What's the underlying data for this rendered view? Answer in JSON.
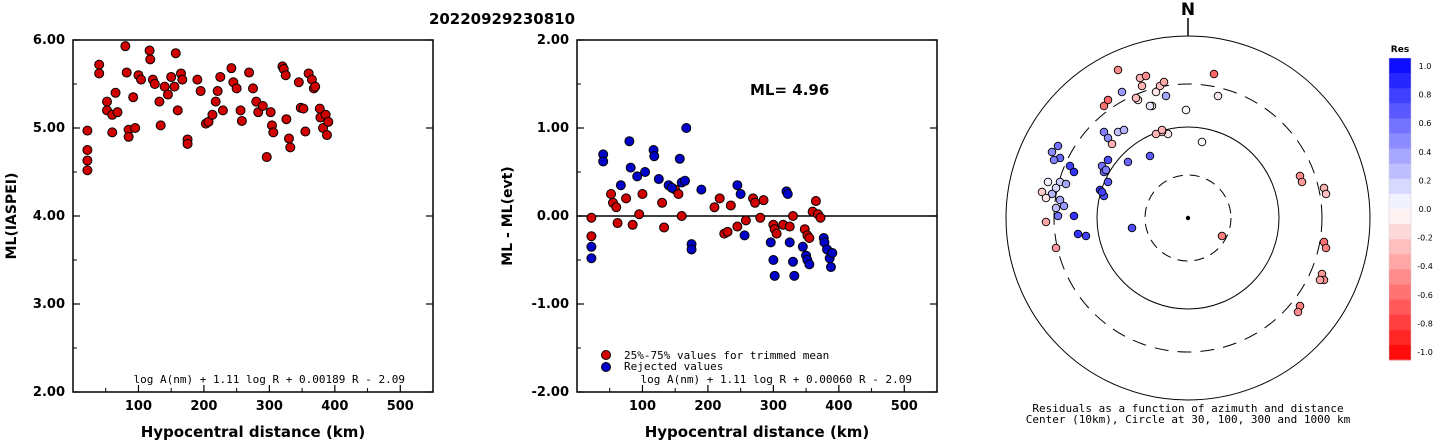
{
  "title": "20220929230810",
  "chart_data": [
    {
      "type": "scatter",
      "xlabel": "Hypocentral distance (km)",
      "ylabel": "ML(IASPEI)",
      "xlim": [
        0,
        550
      ],
      "ylim": [
        2.0,
        6.0
      ],
      "xticks": [
        "100",
        "200",
        "300",
        "400",
        "500"
      ],
      "yticks": [
        "2.00",
        "3.00",
        "4.00",
        "5.00",
        "6.00"
      ],
      "formula": "log A(nm) + 1.11 log R + 0.00189 R - 2.09",
      "points": [
        [
          22,
          4.97
        ],
        [
          22,
          4.75
        ],
        [
          22,
          4.63
        ],
        [
          22,
          4.52
        ],
        [
          40,
          5.72
        ],
        [
          40,
          5.62
        ],
        [
          52,
          5.3
        ],
        [
          52,
          5.2
        ],
        [
          60,
          5.15
        ],
        [
          60,
          4.95
        ],
        [
          65,
          5.4
        ],
        [
          68,
          5.18
        ],
        [
          80,
          5.93
        ],
        [
          82,
          5.63
        ],
        [
          85,
          4.98
        ],
        [
          85,
          4.9
        ],
        [
          92,
          5.35
        ],
        [
          95,
          5.0
        ],
        [
          100,
          5.6
        ],
        [
          104,
          5.55
        ],
        [
          117,
          5.88
        ],
        [
          118,
          5.78
        ],
        [
          122,
          5.55
        ],
        [
          125,
          5.5
        ],
        [
          132,
          5.3
        ],
        [
          134,
          5.03
        ],
        [
          140,
          5.47
        ],
        [
          145,
          5.38
        ],
        [
          150,
          5.58
        ],
        [
          155,
          5.47
        ],
        [
          157,
          5.85
        ],
        [
          160,
          5.2
        ],
        [
          165,
          5.62
        ],
        [
          167,
          5.55
        ],
        [
          175,
          4.87
        ],
        [
          175,
          4.82
        ],
        [
          190,
          5.55
        ],
        [
          195,
          5.42
        ],
        [
          203,
          5.05
        ],
        [
          207,
          5.07
        ],
        [
          213,
          5.15
        ],
        [
          218,
          5.3
        ],
        [
          221,
          5.42
        ],
        [
          225,
          5.58
        ],
        [
          229,
          5.2
        ],
        [
          242,
          5.68
        ],
        [
          245,
          5.52
        ],
        [
          250,
          5.45
        ],
        [
          256,
          5.2
        ],
        [
          258,
          5.08
        ],
        [
          269,
          5.63
        ],
        [
          275,
          5.45
        ],
        [
          280,
          5.3
        ],
        [
          283,
          5.18
        ],
        [
          290,
          5.25
        ],
        [
          296,
          4.67
        ],
        [
          302,
          5.18
        ],
        [
          304,
          5.03
        ],
        [
          306,
          4.95
        ],
        [
          320,
          5.7
        ],
        [
          322,
          5.67
        ],
        [
          325,
          5.6
        ],
        [
          326,
          5.1
        ],
        [
          330,
          4.88
        ],
        [
          332,
          4.78
        ],
        [
          345,
          5.52
        ],
        [
          348,
          5.23
        ],
        [
          352,
          5.22
        ],
        [
          355,
          4.96
        ],
        [
          360,
          5.62
        ],
        [
          365,
          5.55
        ],
        [
          368,
          5.45
        ],
        [
          370,
          5.47
        ],
        [
          377,
          5.22
        ],
        [
          378,
          5.12
        ],
        [
          382,
          5.0
        ],
        [
          386,
          5.15
        ],
        [
          388,
          4.92
        ],
        [
          390,
          5.07
        ]
      ]
    },
    {
      "type": "scatter",
      "xlabel": "Hypocentral distance (km)",
      "ylabel": "ML - ML(evt)",
      "xlim": [
        0,
        550
      ],
      "ylim": [
        -2.0,
        2.0
      ],
      "xticks": [
        "100",
        "200",
        "300",
        "400",
        "500"
      ],
      "yticks": [
        "-2.00",
        "-1.00",
        "0.00",
        "1.00",
        "2.00"
      ],
      "annotation": "ML= 4.96",
      "formula": "log A(nm) + 1.11 log R + 0.00060 R - 2.09",
      "series": [
        {
          "name": "25%-75% values for trimmed mean",
          "color": "#d00000",
          "points": [
            [
              22,
              -0.02
            ],
            [
              22,
              -0.23
            ],
            [
              52,
              0.25
            ],
            [
              55,
              0.15
            ],
            [
              60,
              0.1
            ],
            [
              62,
              -0.08
            ],
            [
              75,
              0.2
            ],
            [
              85,
              -0.1
            ],
            [
              95,
              0.02
            ],
            [
              100,
              0.25
            ],
            [
              130,
              0.15
            ],
            [
              133,
              -0.13
            ],
            [
              150,
              0.3
            ],
            [
              155,
              0.25
            ],
            [
              160,
              0.0
            ],
            [
              210,
              0.1
            ],
            [
              218,
              0.2
            ],
            [
              225,
              -0.2
            ],
            [
              230,
              -0.18
            ],
            [
              235,
              0.12
            ],
            [
              245,
              -0.12
            ],
            [
              258,
              -0.05
            ],
            [
              269,
              0.2
            ],
            [
              272,
              0.15
            ],
            [
              280,
              -0.02
            ],
            [
              285,
              0.18
            ],
            [
              300,
              -0.1
            ],
            [
              302,
              -0.15
            ],
            [
              305,
              -0.2
            ],
            [
              315,
              -0.1
            ],
            [
              325,
              -0.12
            ],
            [
              330,
              0.0
            ],
            [
              348,
              -0.15
            ],
            [
              352,
              -0.22
            ],
            [
              355,
              -0.25
            ],
            [
              360,
              0.05
            ],
            [
              365,
              0.17
            ],
            [
              368,
              0.02
            ],
            [
              372,
              -0.02
            ]
          ]
        },
        {
          "name": "Rejected values",
          "color": "#0000c8",
          "points": [
            [
              22,
              -0.35
            ],
            [
              22,
              -0.48
            ],
            [
              40,
              0.7
            ],
            [
              40,
              0.62
            ],
            [
              67,
              0.35
            ],
            [
              80,
              0.85
            ],
            [
              82,
              0.55
            ],
            [
              92,
              0.45
            ],
            [
              104,
              0.5
            ],
            [
              117,
              0.75
            ],
            [
              118,
              0.68
            ],
            [
              125,
              0.42
            ],
            [
              140,
              0.35
            ],
            [
              145,
              0.32
            ],
            [
              157,
              0.65
            ],
            [
              160,
              0.38
            ],
            [
              165,
              0.4
            ],
            [
              167,
              1.0
            ],
            [
              175,
              -0.32
            ],
            [
              175,
              -0.38
            ],
            [
              190,
              0.3
            ],
            [
              245,
              0.35
            ],
            [
              250,
              0.25
            ],
            [
              256,
              -0.22
            ],
            [
              296,
              -0.3
            ],
            [
              300,
              -0.5
            ],
            [
              302,
              -0.68
            ],
            [
              320,
              0.28
            ],
            [
              322,
              0.25
            ],
            [
              325,
              -0.3
            ],
            [
              330,
              -0.52
            ],
            [
              332,
              -0.68
            ],
            [
              345,
              -0.35
            ],
            [
              350,
              -0.45
            ],
            [
              352,
              -0.5
            ],
            [
              355,
              -0.55
            ],
            [
              377,
              -0.25
            ],
            [
              378,
              -0.3
            ],
            [
              382,
              -0.38
            ],
            [
              386,
              -0.48
            ],
            [
              388,
              -0.58
            ],
            [
              390,
              -0.42
            ]
          ]
        }
      ]
    },
    {
      "type": "polar-scatter",
      "north_label": "N",
      "caption_line1": "Residuals as a function of azimuth and distance",
      "caption_line2": "Center (10km), Circle at 30, 100, 300 and 1000 km",
      "colorbar_title": "Res",
      "colorbar_ticks": [
        "1.0",
        "0.8",
        "0.6",
        "0.4",
        "0.2",
        "0.0",
        "-0.2",
        "-0.4",
        "-0.6",
        "-0.8",
        "-1.0"
      ],
      "stations": [
        {
          "dx": -2,
          "dy": -108,
          "res": 0.0
        },
        {
          "dx": 14,
          "dy": -76,
          "res": 0.0
        },
        {
          "dx": 34,
          "dy": 18,
          "res": -0.5
        },
        {
          "dx": -56,
          "dy": 10,
          "res": 0.7
        },
        {
          "dx": -110,
          "dy": 16,
          "res": 0.8
        },
        {
          "dx": -102,
          "dy": 18,
          "res": 0.75
        },
        {
          "dx": -38,
          "dy": -62,
          "res": 0.65
        },
        {
          "dx": -20,
          "dy": -84,
          "res": -0.1
        },
        {
          "dx": -26,
          "dy": -86,
          "res": -0.25
        },
        {
          "dx": -32,
          "dy": -84,
          "res": -0.3
        },
        {
          "dx": -80,
          "dy": -58,
          "res": 0.7
        },
        {
          "dx": -86,
          "dy": -52,
          "res": 0.55
        },
        {
          "dx": -84,
          "dy": -46,
          "res": 0.6
        },
        {
          "dx": -88,
          "dy": -28,
          "res": 0.8
        },
        {
          "dx": -84,
          "dy": -22,
          "res": 0.7
        },
        {
          "dx": -84,
          "dy": -86,
          "res": 0.5
        },
        {
          "dx": -80,
          "dy": -80,
          "res": 0.45
        },
        {
          "dx": -70,
          "dy": -86,
          "res": 0.25
        },
        {
          "dx": -64,
          "dy": -88,
          "res": 0.3
        },
        {
          "dx": -130,
          "dy": -72,
          "res": 0.55
        },
        {
          "dx": -136,
          "dy": -66,
          "res": 0.45
        },
        {
          "dx": -128,
          "dy": -60,
          "res": 0.6
        },
        {
          "dx": -134,
          "dy": -58,
          "res": 0.5
        },
        {
          "dx": -118,
          "dy": -52,
          "res": 0.75
        },
        {
          "dx": -114,
          "dy": -46,
          "res": 0.8
        },
        {
          "dx": -128,
          "dy": -36,
          "res": 0.2
        },
        {
          "dx": -122,
          "dy": -34,
          "res": 0.35
        },
        {
          "dx": -132,
          "dy": -30,
          "res": 0.15
        },
        {
          "dx": -140,
          "dy": -36,
          "res": 0.05
        },
        {
          "dx": -136,
          "dy": -24,
          "res": 0.3
        },
        {
          "dx": -128,
          "dy": -18,
          "res": 0.35
        },
        {
          "dx": -124,
          "dy": -12,
          "res": 0.4
        },
        {
          "dx": -132,
          "dy": -10,
          "res": 0.25
        },
        {
          "dx": -146,
          "dy": -26,
          "res": -0.2
        },
        {
          "dx": -142,
          "dy": -20,
          "res": -0.1
        },
        {
          "dx": -130,
          "dy": -2,
          "res": 0.55
        },
        {
          "dx": -142,
          "dy": 4,
          "res": -0.35
        },
        {
          "dx": -114,
          "dy": -2,
          "res": 0.8
        },
        {
          "dx": -86,
          "dy": -26,
          "res": 0.75
        },
        {
          "dx": -82,
          "dy": -48,
          "res": 0.5
        },
        {
          "dx": -80,
          "dy": -36,
          "res": 0.65
        },
        {
          "dx": -132,
          "dy": 30,
          "res": -0.4
        },
        {
          "dx": -50,
          "dy": -118,
          "res": -0.1
        },
        {
          "dx": -46,
          "dy": -132,
          "res": -0.3
        },
        {
          "dx": -32,
          "dy": -126,
          "res": -0.1
        },
        {
          "dx": -28,
          "dy": -132,
          "res": -0.25
        },
        {
          "dx": -48,
          "dy": -140,
          "res": -0.3
        },
        {
          "dx": -36,
          "dy": -112,
          "res": -0.1
        },
        {
          "dx": -52,
          "dy": -120,
          "res": -0.25
        },
        {
          "dx": -24,
          "dy": -136,
          "res": -0.35
        },
        {
          "dx": -42,
          "dy": -142,
          "res": -0.45
        },
        {
          "dx": -84,
          "dy": -112,
          "res": -0.55
        },
        {
          "dx": -80,
          "dy": -118,
          "res": -0.6
        },
        {
          "dx": -76,
          "dy": -74,
          "res": -0.3
        },
        {
          "dx": -70,
          "dy": -148,
          "res": -0.45
        },
        {
          "dx": -66,
          "dy": -126,
          "res": 0.4
        },
        {
          "dx": -38,
          "dy": -112,
          "res": 0.1
        },
        {
          "dx": 26,
          "dy": -144,
          "res": -0.6
        },
        {
          "dx": 30,
          "dy": -122,
          "res": -0.1
        },
        {
          "dx": -22,
          "dy": -122,
          "res": 0.35
        },
        {
          "dx": -60,
          "dy": -56,
          "res": 0.6
        },
        {
          "dx": -26,
          "dy": -88,
          "res": -0.3
        },
        {
          "dx": 112,
          "dy": -42,
          "res": -0.45
        },
        {
          "dx": 114,
          "dy": -36,
          "res": -0.4
        },
        {
          "dx": 136,
          "dy": -30,
          "res": -0.3
        },
        {
          "dx": 138,
          "dy": -24,
          "res": -0.25
        },
        {
          "dx": 136,
          "dy": 24,
          "res": -0.55
        },
        {
          "dx": 138,
          "dy": 30,
          "res": -0.5
        },
        {
          "dx": 134,
          "dy": 56,
          "res": -0.4
        },
        {
          "dx": 136,
          "dy": 62,
          "res": -0.45
        },
        {
          "dx": 132,
          "dy": 62,
          "res": -0.35
        },
        {
          "dx": 112,
          "dy": 88,
          "res": -0.5
        },
        {
          "dx": 110,
          "dy": 94,
          "res": -0.45
        }
      ]
    }
  ]
}
